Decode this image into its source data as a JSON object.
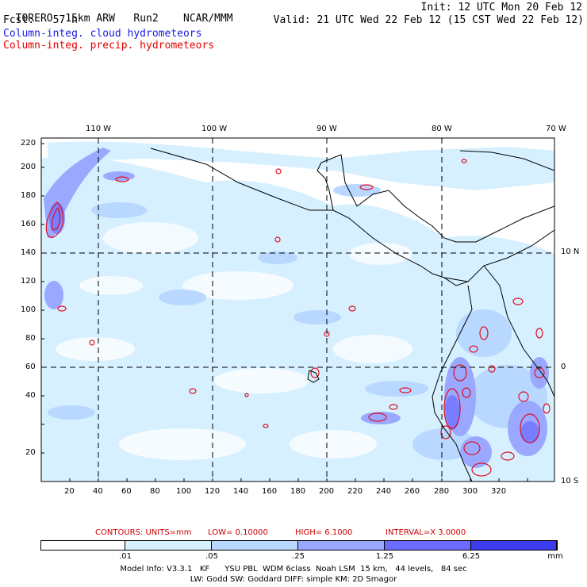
{
  "header": {
    "run_name": "TORERO",
    "resolution": "15km ARW",
    "run": "Run2",
    "org": "NCAR/MMM",
    "init": "Init: 12 UTC Mon 20 Feb 12",
    "fcst_label": "Fcst:",
    "fcst_value": "57 h",
    "valid": "Valid: 21 UTC Wed 22 Feb 12 (15 CST Wed 22 Feb 12)",
    "field1": "Column-integ. cloud hydrometeors",
    "field2": "Column-integ. precip. hydrometeors",
    "field1_color": "#1a1ae6",
    "field2_color": "#e60000"
  },
  "map": {
    "lon_labels": [
      "110 W",
      "100 W",
      "90 W",
      "80 W",
      "70 W"
    ],
    "lat_labels": [
      "10 N",
      "0",
      "10 S"
    ],
    "x_ticks": [
      "20",
      "40",
      "60",
      "80",
      "100",
      "120",
      "140",
      "160",
      "180",
      "200",
      "220",
      "240",
      "260",
      "280",
      "300",
      "320"
    ],
    "y_ticks": [
      "220",
      "200",
      "180",
      "160",
      "140",
      "120",
      "100",
      "80",
      "60",
      "40",
      "20"
    ]
  },
  "contours": {
    "units_label": "CONTOURS:  UNITS=mm",
    "low": "LOW= 0.10000",
    "high": "HIGH=  6.1000",
    "interval": "INTERVAL=X  3.0000"
  },
  "colorbar": {
    "colors": [
      "#ffffff",
      "#d6f0ff",
      "#b8d8ff",
      "#9aa8ff",
      "#6b6bff",
      "#3b3bf0",
      "#1010e0"
    ],
    "labels": [
      ".01",
      ".05",
      ".25",
      "1.25",
      "6.25"
    ],
    "unit": "mm"
  },
  "footer": {
    "line1": "Model Info: V3.3.1   KF      YSU PBL  WDM 6class  Noah LSM  15 km,   44 levels,   84 sec",
    "line2": "LW: Godd SW: Goddard DIFF: simple KM: 2D Smagor"
  }
}
